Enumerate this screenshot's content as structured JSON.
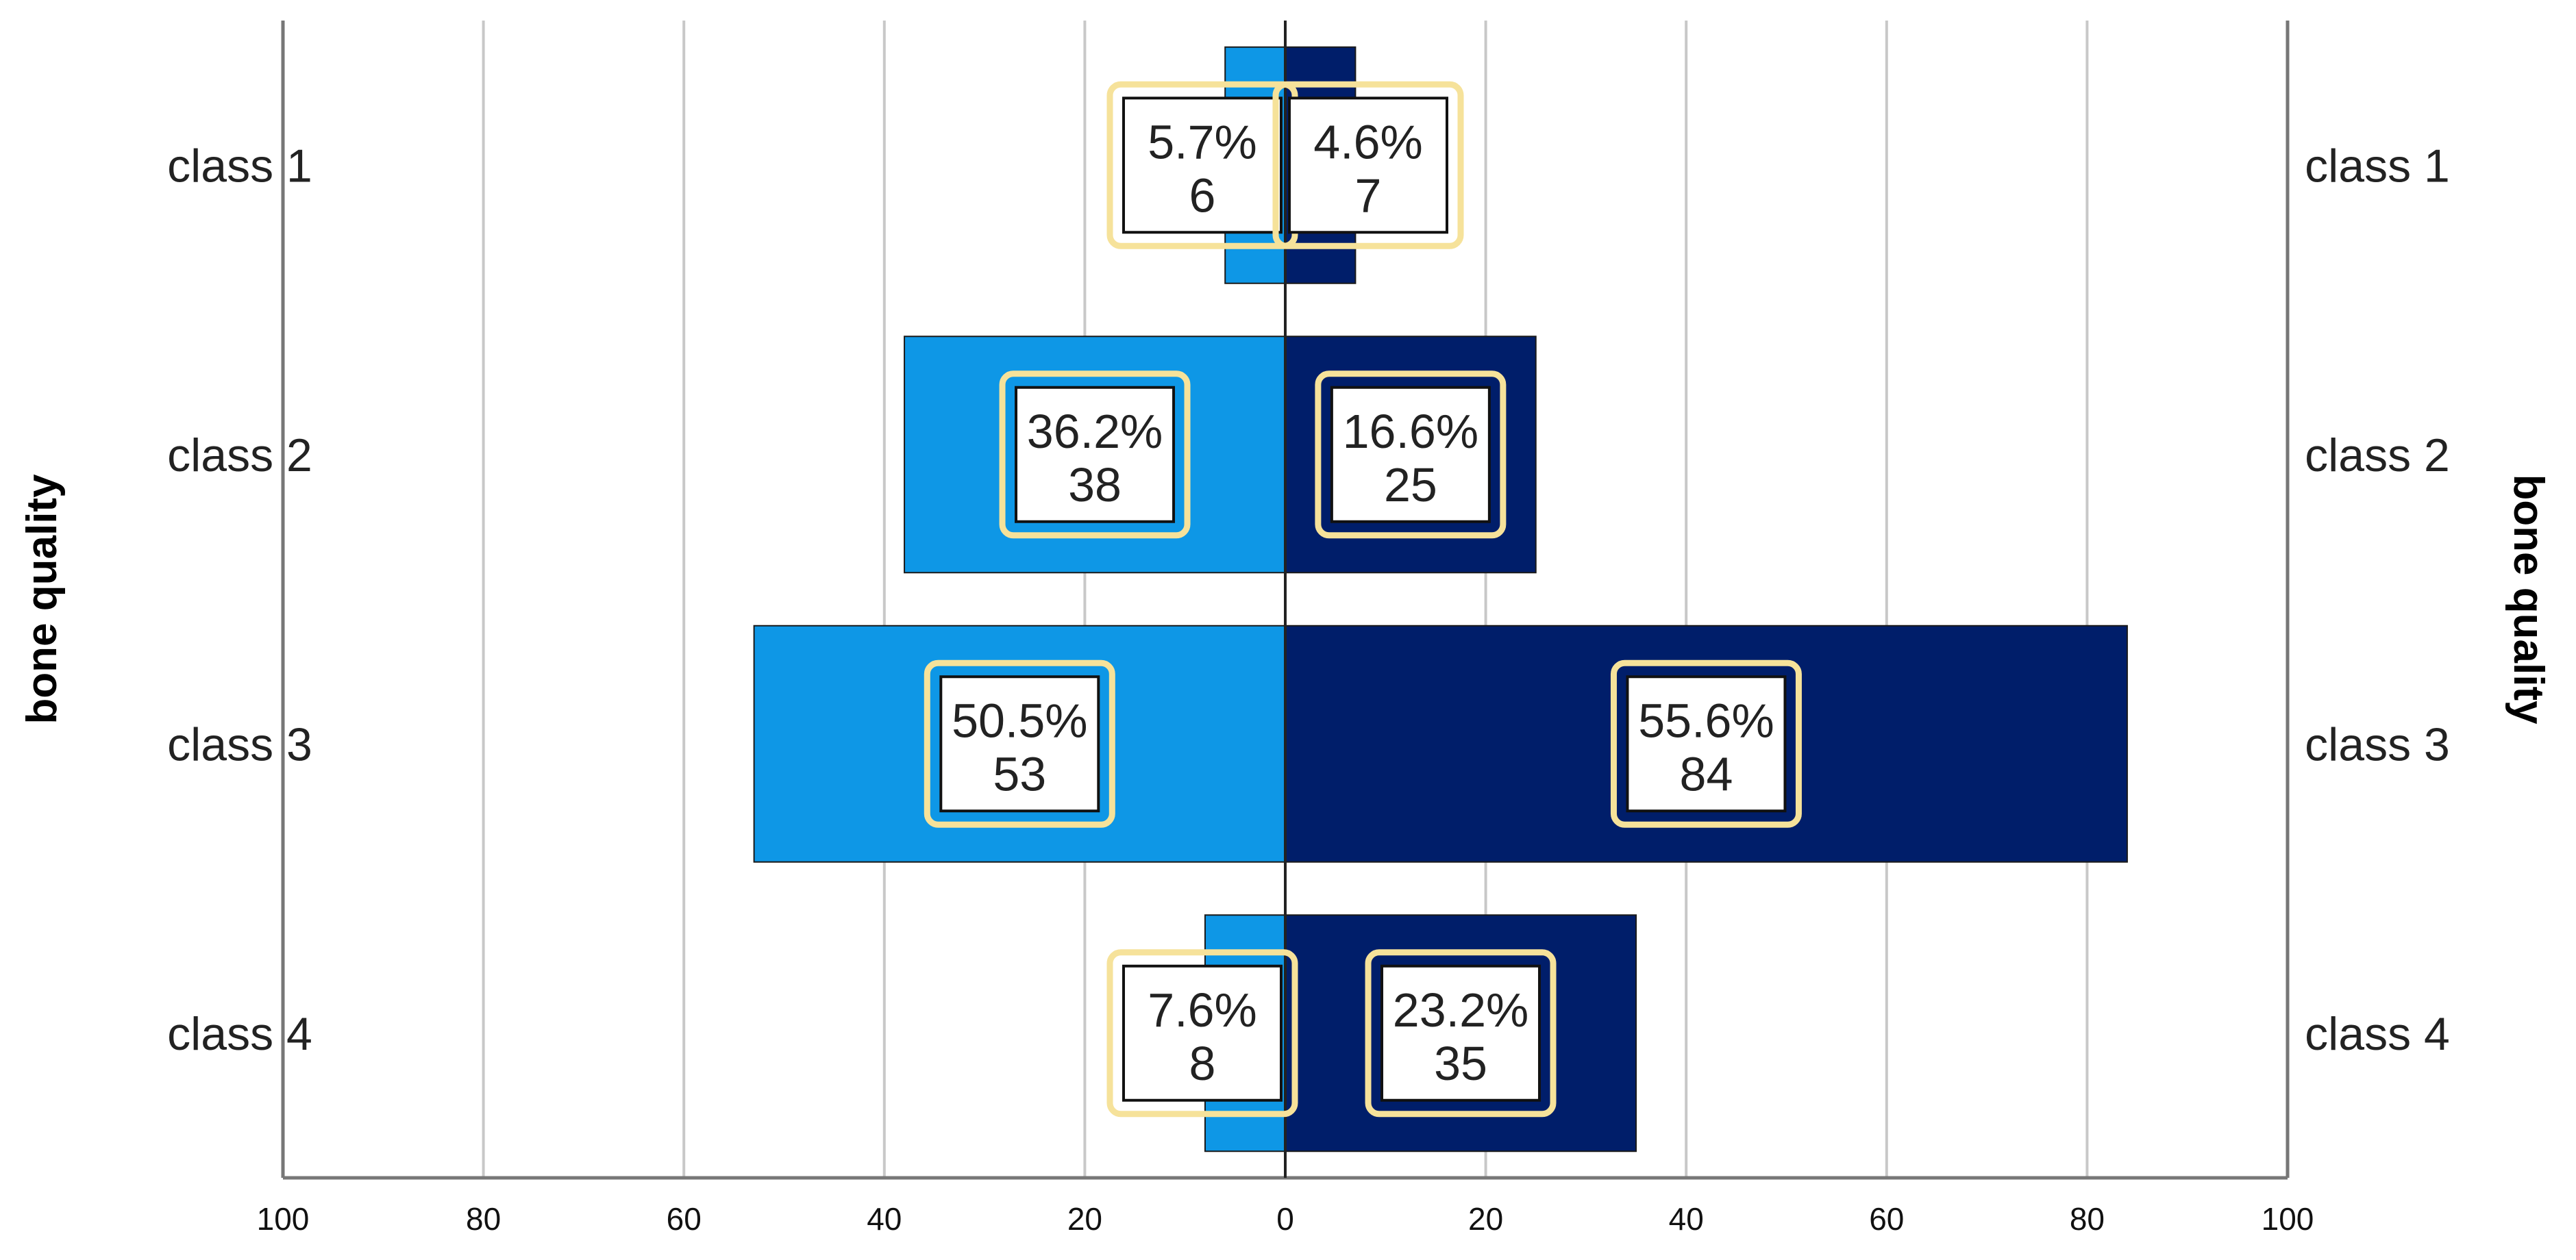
{
  "chart_data": {
    "type": "bar",
    "orientation": "horizontal",
    "layout": "population-pyramid",
    "categories": [
      "class 1",
      "class 2",
      "class 3",
      "class 4"
    ],
    "series": [
      {
        "side": "left",
        "color": "#0e97e6",
        "values": [
          6,
          38,
          53,
          8
        ],
        "percent_labels": [
          "5.7%",
          "36.2%",
          "50.5%",
          "7.6%"
        ]
      },
      {
        "side": "right",
        "color": "#001e6a",
        "values": [
          7,
          25,
          84,
          35
        ],
        "percent_labels": [
          "4.6%",
          "16.6%",
          "55.6%",
          "23.2%"
        ]
      }
    ],
    "ylabel_left": "bone quality",
    "ylabel_right": "bone quality",
    "xlim": [
      0,
      100
    ],
    "x_ticks": [
      100,
      80,
      60,
      40,
      20,
      0,
      20,
      40,
      60,
      80,
      100
    ],
    "grid": true,
    "legend": "none",
    "label_box_border_color": "#f6e29a",
    "grid_color": "#c8c8c8",
    "axis_color": "#777777"
  }
}
